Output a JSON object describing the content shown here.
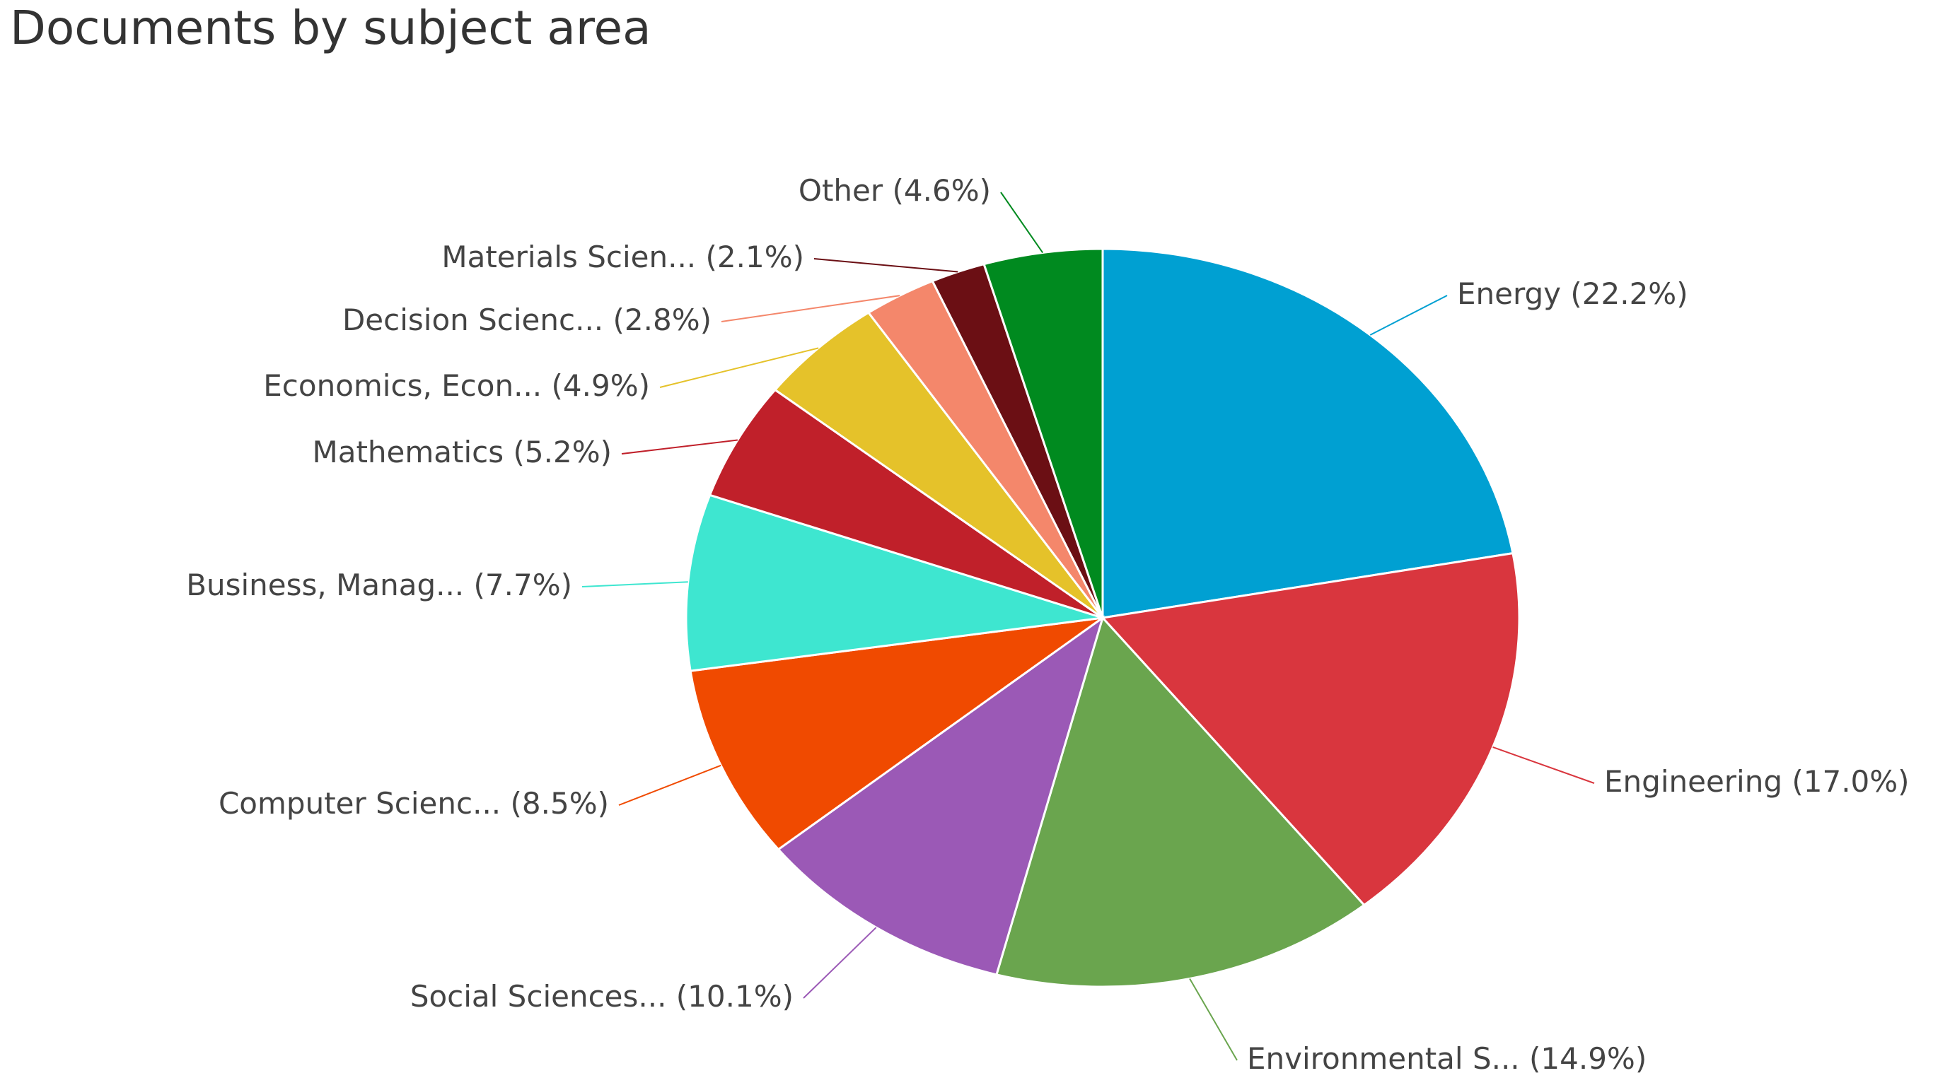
{
  "chart_data": {
    "type": "pie",
    "title": "Documents by subject area",
    "categories": [
      "Energy",
      "Engineering",
      "Environmental S...",
      "Social Sciences...",
      "Computer Scienc...",
      "Business, Manag...",
      "Mathematics",
      "Economics, Econ...",
      "Decision Scienc...",
      "Materials Scien...",
      "Other"
    ],
    "values": [
      22.2,
      17.0,
      14.9,
      10.1,
      8.5,
      7.7,
      5.2,
      4.9,
      2.8,
      2.1,
      4.6
    ],
    "value_labels": [
      "(22.2%)",
      "(17.0%)",
      "(14.9%)",
      "(10.1%)",
      "(8.5%)",
      "(7.7%)",
      "(5.2%)",
      "(4.9%)",
      "(2.8%)",
      "(2.1%)",
      "(4.6%)"
    ],
    "colors": [
      "#00a0d2",
      "#d9363e",
      "#6aa54e",
      "#9b59b6",
      "#f04a00",
      "#3ee6d0",
      "#c0202a",
      "#e5c22a",
      "#f4876b",
      "#6b0f14",
      "#008a1f"
    ]
  }
}
